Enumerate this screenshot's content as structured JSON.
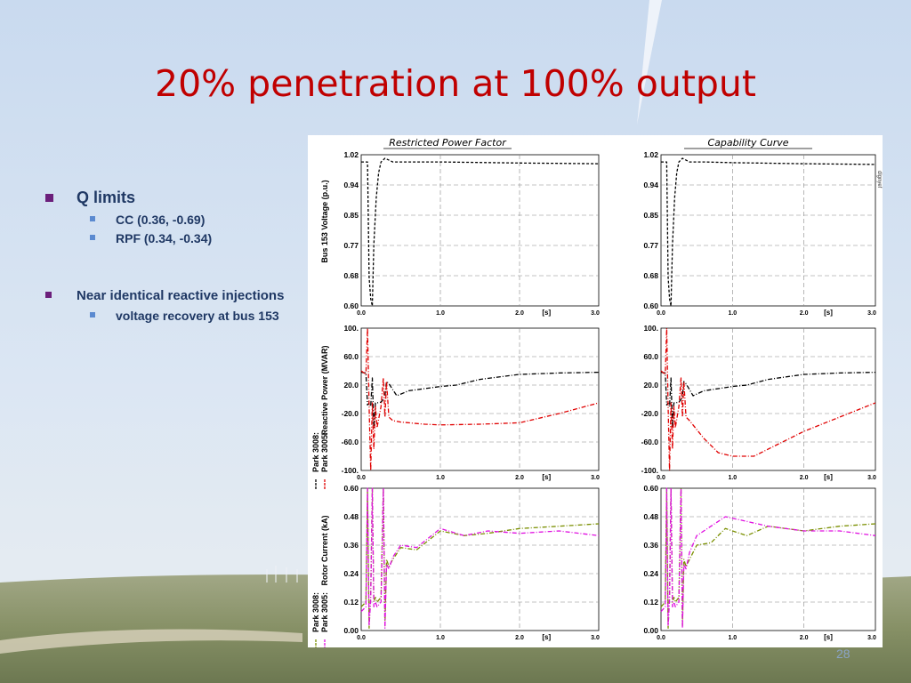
{
  "slide": {
    "title": "20% penetration at 100% output",
    "page_number": "28"
  },
  "bullets": [
    {
      "text": "Q limits",
      "sub": [
        "CC  (0.36, -0.69)",
        "RPF  (0.34, -0.34)"
      ]
    },
    {
      "text": "Near identical reactive injections",
      "sub": [
        "voltage recovery at bus 153"
      ]
    }
  ],
  "chart_panel": {
    "columns": [
      "Restricted Power Factor",
      "Capability Curve"
    ],
    "side_stamp": "dlgnyef",
    "x_unit_label": "[s]"
  },
  "chart_data": [
    {
      "type": "line",
      "column": "Restricted Power Factor",
      "ylabel": "Bus 153 Voltage (p.u.)",
      "xlim": [
        0,
        3
      ],
      "ylim": [
        0.6,
        1.02
      ],
      "xticks": [
        "0.0",
        "1.0",
        "2.0",
        "3.0"
      ],
      "yticks": [
        "1.02",
        "0.94",
        "0.85",
        "0.77",
        "0.68",
        "0.60"
      ],
      "series": [
        {
          "color": "#000000",
          "dash": "3,2",
          "x": [
            0,
            0.08,
            0.1,
            0.12,
            0.14,
            0.16,
            0.19,
            0.22,
            0.25,
            0.3,
            0.4,
            0.6,
            1,
            2,
            3
          ],
          "y": [
            1.0,
            1.0,
            0.68,
            0.62,
            0.6,
            0.77,
            0.9,
            0.97,
            1.0,
            1.01,
            1.0,
            1.0,
            1.0,
            0.997,
            0.995
          ]
        }
      ]
    },
    {
      "type": "line",
      "column": "Capability Curve",
      "ylabel": "",
      "xlim": [
        0,
        3
      ],
      "ylim": [
        0.6,
        1.02
      ],
      "xticks": [
        "0.0",
        "1.0",
        "2.0",
        "3.0"
      ],
      "yticks": [
        "1.02",
        "0.94",
        "0.85",
        "0.77",
        "0.68",
        "0.60"
      ],
      "series": [
        {
          "color": "#000000",
          "dash": "3,2",
          "x": [
            0,
            0.08,
            0.1,
            0.12,
            0.14,
            0.16,
            0.19,
            0.22,
            0.25,
            0.3,
            0.4,
            0.6,
            1,
            2,
            3
          ],
          "y": [
            1.0,
            1.0,
            0.68,
            0.62,
            0.6,
            0.77,
            0.9,
            0.97,
            1.0,
            1.01,
            1.0,
            1.0,
            0.998,
            0.995,
            0.993
          ]
        }
      ]
    },
    {
      "type": "line",
      "column": "Restricted Power Factor",
      "ylabel": "Reactive Power (MVAR)",
      "xlim": [
        0,
        3
      ],
      "ylim": [
        -100,
        100
      ],
      "xticks": [
        "0.0",
        "1.0",
        "2.0",
        "3.0"
      ],
      "yticks": [
        "100.",
        "60.0",
        "20.0",
        "-20.0",
        "-60.0",
        "-100."
      ],
      "legend": [
        "Park 3008:",
        "Park 3005:"
      ],
      "series": [
        {
          "name": "Park 3008:",
          "color": "#000000",
          "dash": "5,2,1,2",
          "x": [
            0,
            0.06,
            0.08,
            0.1,
            0.12,
            0.14,
            0.16,
            0.18,
            0.2,
            0.25,
            0.28,
            0.3,
            0.32,
            0.35,
            0.45,
            0.6,
            0.8,
            1,
            1.2,
            1.5,
            2,
            2.5,
            3
          ],
          "y": [
            38,
            37,
            -8,
            -5,
            -10,
            30,
            -40,
            -5,
            -5,
            -4,
            0,
            5,
            25,
            22,
            5,
            12,
            15,
            18,
            20,
            28,
            35,
            37,
            38
          ]
        },
        {
          "name": "Park 3005:",
          "color": "#e00000",
          "dash": "5,2,1,2",
          "x": [
            0,
            0.06,
            0.08,
            0.1,
            0.12,
            0.14,
            0.16,
            0.18,
            0.2,
            0.25,
            0.28,
            0.3,
            0.32,
            0.35,
            0.4,
            0.5,
            0.8,
            1,
            1.5,
            2,
            2.5,
            3
          ],
          "y": [
            40,
            35,
            100,
            -10,
            -100,
            -5,
            -70,
            -10,
            -40,
            -10,
            30,
            -25,
            25,
            -25,
            -30,
            -32,
            -35,
            -36,
            -35,
            -33,
            -20,
            -5
          ]
        }
      ]
    },
    {
      "type": "line",
      "column": "Capability Curve",
      "ylabel": "",
      "xlim": [
        0,
        3
      ],
      "ylim": [
        -100,
        100
      ],
      "xticks": [
        "0.0",
        "1.0",
        "2.0",
        "3.0"
      ],
      "yticks": [
        "100.",
        "60.0",
        "20.0",
        "-20.0",
        "-60.0",
        "-100."
      ],
      "series": [
        {
          "name": "Park 3008:",
          "color": "#000000",
          "dash": "5,2,1,2",
          "x": [
            0,
            0.06,
            0.08,
            0.1,
            0.12,
            0.14,
            0.16,
            0.18,
            0.2,
            0.25,
            0.28,
            0.3,
            0.32,
            0.35,
            0.45,
            0.6,
            0.8,
            1,
            1.2,
            1.5,
            2,
            2.5,
            3
          ],
          "y": [
            38,
            37,
            -8,
            -5,
            -10,
            30,
            -40,
            -5,
            -5,
            -4,
            0,
            5,
            25,
            22,
            5,
            12,
            15,
            18,
            20,
            28,
            35,
            37,
            38
          ]
        },
        {
          "name": "Park 3005:",
          "color": "#e00000",
          "dash": "5,2,1,2",
          "x": [
            0,
            0.06,
            0.08,
            0.1,
            0.12,
            0.14,
            0.16,
            0.18,
            0.2,
            0.25,
            0.28,
            0.3,
            0.32,
            0.35,
            0.4,
            0.6,
            0.8,
            1,
            1.3,
            1.6,
            2,
            2.5,
            3
          ],
          "y": [
            40,
            35,
            100,
            -10,
            -100,
            -5,
            -70,
            -10,
            -40,
            -10,
            30,
            -25,
            25,
            -25,
            -30,
            -55,
            -75,
            -80,
            -80,
            -65,
            -45,
            -25,
            -5
          ]
        }
      ]
    },
    {
      "type": "line",
      "column": "Restricted Power Factor",
      "ylabel": "Rotor Current (kA)",
      "xlim": [
        0,
        3
      ],
      "ylim": [
        0,
        0.6
      ],
      "xticks": [
        "0.0",
        "1.0",
        "2.0",
        "3.0"
      ],
      "yticks": [
        "0.60",
        "0.48",
        "0.36",
        "0.24",
        "0.12",
        "0.00"
      ],
      "legend": [
        "Park 3008:",
        "Park 3005:"
      ],
      "series": [
        {
          "name": "Park 3008:",
          "color": "#7a8f00",
          "dash": "5,2,1,2",
          "x": [
            0,
            0.06,
            0.08,
            0.1,
            0.12,
            0.14,
            0.16,
            0.18,
            0.2,
            0.25,
            0.28,
            0.3,
            0.32,
            0.35,
            0.4,
            0.5,
            0.7,
            1,
            1.3,
            1.6,
            2,
            2.5,
            3
          ],
          "y": [
            0.1,
            0.12,
            0.6,
            0.01,
            0.15,
            0.6,
            0.12,
            0.14,
            0.12,
            0.14,
            0.6,
            0.02,
            0.3,
            0.27,
            0.3,
            0.35,
            0.34,
            0.42,
            0.4,
            0.41,
            0.43,
            0.44,
            0.45
          ]
        },
        {
          "name": "Park 3005:",
          "color": "#e010e0",
          "dash": "5,2,1,2",
          "x": [
            0,
            0.06,
            0.08,
            0.1,
            0.12,
            0.14,
            0.16,
            0.18,
            0.2,
            0.25,
            0.28,
            0.3,
            0.32,
            0.35,
            0.4,
            0.5,
            0.7,
            1,
            1.3,
            1.6,
            2,
            2.5,
            3
          ],
          "y": [
            0.08,
            0.1,
            0.6,
            0.02,
            0.13,
            0.6,
            0.1,
            0.12,
            0.1,
            0.12,
            0.6,
            0.01,
            0.28,
            0.26,
            0.31,
            0.36,
            0.35,
            0.43,
            0.4,
            0.42,
            0.41,
            0.42,
            0.4
          ]
        }
      ]
    },
    {
      "type": "line",
      "column": "Capability Curve",
      "ylabel": "",
      "xlim": [
        0,
        3
      ],
      "ylim": [
        0,
        0.6
      ],
      "xticks": [
        "0.0",
        "1.0",
        "2.0",
        "3.0"
      ],
      "yticks": [
        "0.60",
        "0.48",
        "0.36",
        "0.24",
        "0.12",
        "0.00"
      ],
      "series": [
        {
          "name": "Park 3008:",
          "color": "#7a8f00",
          "dash": "5,2,1,2",
          "x": [
            0,
            0.06,
            0.08,
            0.1,
            0.12,
            0.14,
            0.16,
            0.18,
            0.2,
            0.25,
            0.28,
            0.3,
            0.32,
            0.35,
            0.4,
            0.5,
            0.7,
            0.9,
            1.2,
            1.5,
            2,
            2.5,
            3
          ],
          "y": [
            0.1,
            0.12,
            0.6,
            0.01,
            0.15,
            0.6,
            0.12,
            0.14,
            0.12,
            0.14,
            0.6,
            0.02,
            0.3,
            0.27,
            0.3,
            0.36,
            0.37,
            0.43,
            0.4,
            0.44,
            0.42,
            0.44,
            0.45
          ]
        },
        {
          "name": "Park 3005:",
          "color": "#e010e0",
          "dash": "5,2,1,2",
          "x": [
            0,
            0.06,
            0.08,
            0.1,
            0.12,
            0.14,
            0.16,
            0.18,
            0.2,
            0.25,
            0.28,
            0.3,
            0.32,
            0.35,
            0.4,
            0.5,
            0.7,
            0.9,
            1.2,
            1.5,
            2,
            2.5,
            3
          ],
          "y": [
            0.08,
            0.1,
            0.6,
            0.02,
            0.13,
            0.6,
            0.1,
            0.12,
            0.1,
            0.12,
            0.6,
            0.01,
            0.28,
            0.26,
            0.33,
            0.4,
            0.44,
            0.48,
            0.46,
            0.44,
            0.42,
            0.42,
            0.4
          ]
        }
      ]
    }
  ]
}
